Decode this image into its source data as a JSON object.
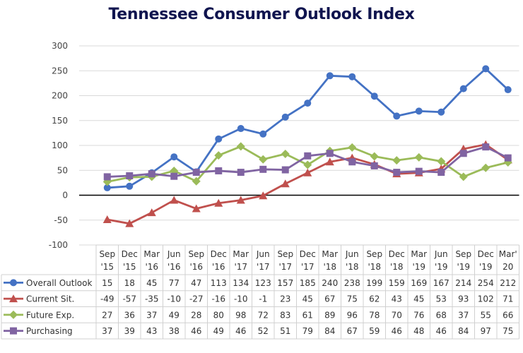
{
  "chart_data": {
    "type": "line",
    "title": "Tennessee Consumer Outlook Index",
    "xlabel": "",
    "ylabel": "",
    "ylim": [
      -100,
      300
    ],
    "yticks": [
      "300",
      "250",
      "200",
      "150",
      "100",
      "50",
      "0",
      "-50",
      "-100"
    ],
    "ytick_values": [
      300,
      250,
      200,
      150,
      100,
      50,
      0,
      -50,
      -100
    ],
    "grid": true,
    "legend": "data-table-bottom",
    "categories": [
      [
        "Sep",
        "'15"
      ],
      [
        "Dec",
        "'15"
      ],
      [
        "Mar",
        "'16"
      ],
      [
        "Jun",
        "'16"
      ],
      [
        "Sep",
        "'16"
      ],
      [
        "Dec",
        "'16"
      ],
      [
        "Mar",
        "'17"
      ],
      [
        "Jun",
        "'17"
      ],
      [
        "Sep",
        "'17"
      ],
      [
        "Dec",
        "'17"
      ],
      [
        "Mar",
        "'18"
      ],
      [
        "Jun",
        "'18"
      ],
      [
        "Sep",
        "'18"
      ],
      [
        "Dec",
        "'18"
      ],
      [
        "Mar",
        "'19"
      ],
      [
        "Jun",
        "'19"
      ],
      [
        "Sep",
        "'19"
      ],
      [
        "Dec",
        "'19"
      ],
      [
        "Mar'",
        "20"
      ]
    ],
    "series": [
      {
        "name": "Overall Outlook",
        "color": "#4472c4",
        "marker": "circle",
        "values": [
          15,
          18,
          45,
          77,
          47,
          113,
          134,
          123,
          157,
          185,
          240,
          238,
          199,
          159,
          169,
          167,
          214,
          254,
          212
        ]
      },
      {
        "name": "Current Sit.",
        "color": "#c0504d",
        "marker": "triangle",
        "values": [
          -49,
          -57,
          -35,
          -10,
          -27,
          -16,
          -10,
          -1,
          23,
          45,
          67,
          75,
          62,
          43,
          45,
          53,
          93,
          102,
          71
        ]
      },
      {
        "name": "Future Exp.",
        "color": "#9bbb59",
        "marker": "diamond",
        "values": [
          27,
          36,
          37,
          49,
          28,
          80,
          98,
          72,
          83,
          61,
          89,
          96,
          78,
          70,
          76,
          68,
          37,
          55,
          66
        ]
      },
      {
        "name": "Purchasing",
        "color": "#8064a2",
        "marker": "square",
        "values": [
          37,
          39,
          43,
          38,
          46,
          49,
          46,
          52,
          51,
          79,
          84,
          67,
          59,
          46,
          48,
          46,
          84,
          97,
          75
        ]
      }
    ]
  }
}
